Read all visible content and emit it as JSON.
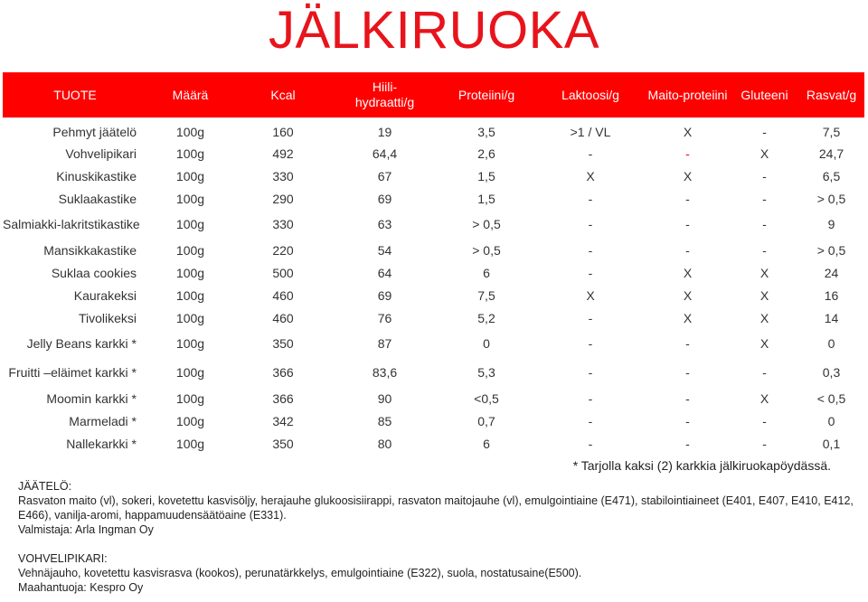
{
  "title": "JÄLKIRUOKA",
  "table": {
    "headers": [
      "TUOTE",
      "Määrä",
      "Kcal",
      "Hiili-\nhydraatti/g",
      "Proteiini/g",
      "Laktoosi/g",
      "Maito-proteiini",
      "Gluteeni",
      "Rasvat/g"
    ],
    "header_line1": [
      "TUOTE",
      "Määrä",
      "Kcal",
      "Hiili-",
      "Proteiini/g",
      "Laktoosi/g",
      "Maito-proteiini",
      "Gluteeni",
      "Rasvat/g"
    ],
    "header_line2": [
      "",
      "",
      "",
      "hydraatti/g",
      "",
      "",
      "",
      "",
      ""
    ],
    "rows": [
      [
        "Pehmyt jäätelö",
        "100g",
        "160",
        "19",
        "3,5",
        ">1 / VL",
        "X",
        "-",
        "7,5"
      ],
      [
        "Vohvelipikari",
        "100g",
        "492",
        "64,4",
        "2,6",
        "-",
        "-",
        "X",
        "24,7"
      ],
      [
        "Kinuskikastike",
        "100g",
        "330",
        "67",
        "1,5",
        "X",
        "X",
        "-",
        "6,5"
      ],
      [
        "Suklaakastike",
        "100g",
        "290",
        "69",
        "1,5",
        "-",
        "-",
        "-",
        "> 0,5"
      ],
      [
        "Salmiakki-lakritstikastike",
        "100g",
        "330",
        "63",
        "> 0,5",
        "-",
        "-",
        "-",
        "9"
      ],
      [
        "Mansikkakastike",
        "100g",
        "220",
        "54",
        "> 0,5",
        "-",
        "-",
        "-",
        "> 0,5"
      ],
      [
        "Suklaa cookies",
        "100g",
        "500",
        "64",
        "6",
        "-",
        "X",
        "X",
        "24"
      ],
      [
        "Kaurakeksi",
        "100g",
        "460",
        "69",
        "7,5",
        "X",
        "X",
        "X",
        "16"
      ],
      [
        "Tivolikeksi",
        "100g",
        "460",
        "76",
        "5,2",
        "-",
        "X",
        "X",
        "14"
      ],
      [
        "Jelly Beans karkki *",
        "100g",
        "350",
        "87",
        "0",
        "-",
        "-",
        "X",
        "0"
      ],
      [
        "Fruitti –eläimet karkki  *",
        "100g",
        "366",
        "83,6",
        "5,3",
        "-",
        "-",
        "-",
        "0,3"
      ],
      [
        "Moomin karkki *",
        "100g",
        "366",
        "90",
        "<0,5",
        "-",
        "-",
        "X",
        "< 0,5"
      ],
      [
        "Marmeladi *",
        "100g",
        "342",
        "85",
        "0,7",
        "-",
        "-",
        "-",
        "0"
      ],
      [
        "Nallekarkki *",
        "100g",
        "350",
        "80",
        "6",
        "-",
        "-",
        "-",
        "0,1"
      ]
    ],
    "highlight_color": "#ff0000"
  },
  "footnote": "* Tarjolla kaksi (2) karkkia jälkiruokapöydässä.",
  "notes": {
    "jaatelo_heading": "JÄÄTELÖ:",
    "jaatelo_text": "Rasvaton maito (vl), sokeri, kovetettu kasvisöljy, herajauhe glukoosisiirappi, rasvaton maitojauhe (vl), emulgointiaine (E471), stabilointiaineet (E401, E407, E410, E412, E466), vanilja-aromi, happamuudensäätöaine (E331).",
    "jaatelo_maker": "Valmistaja: Arla Ingman Oy",
    "vohveli_heading": "VOHVELIPIKARI:",
    "vohveli_text": "Vehnäjauho, kovetettu kasvisrasva (kookos), perunatärkkelys, emulgointiaine (E322), suola, nostatusaine(E500).",
    "vohveli_importer": "Maahantuoja:  Kespro Oy"
  },
  "colors": {
    "accent": "#ff0000",
    "title": "#e8141c"
  }
}
